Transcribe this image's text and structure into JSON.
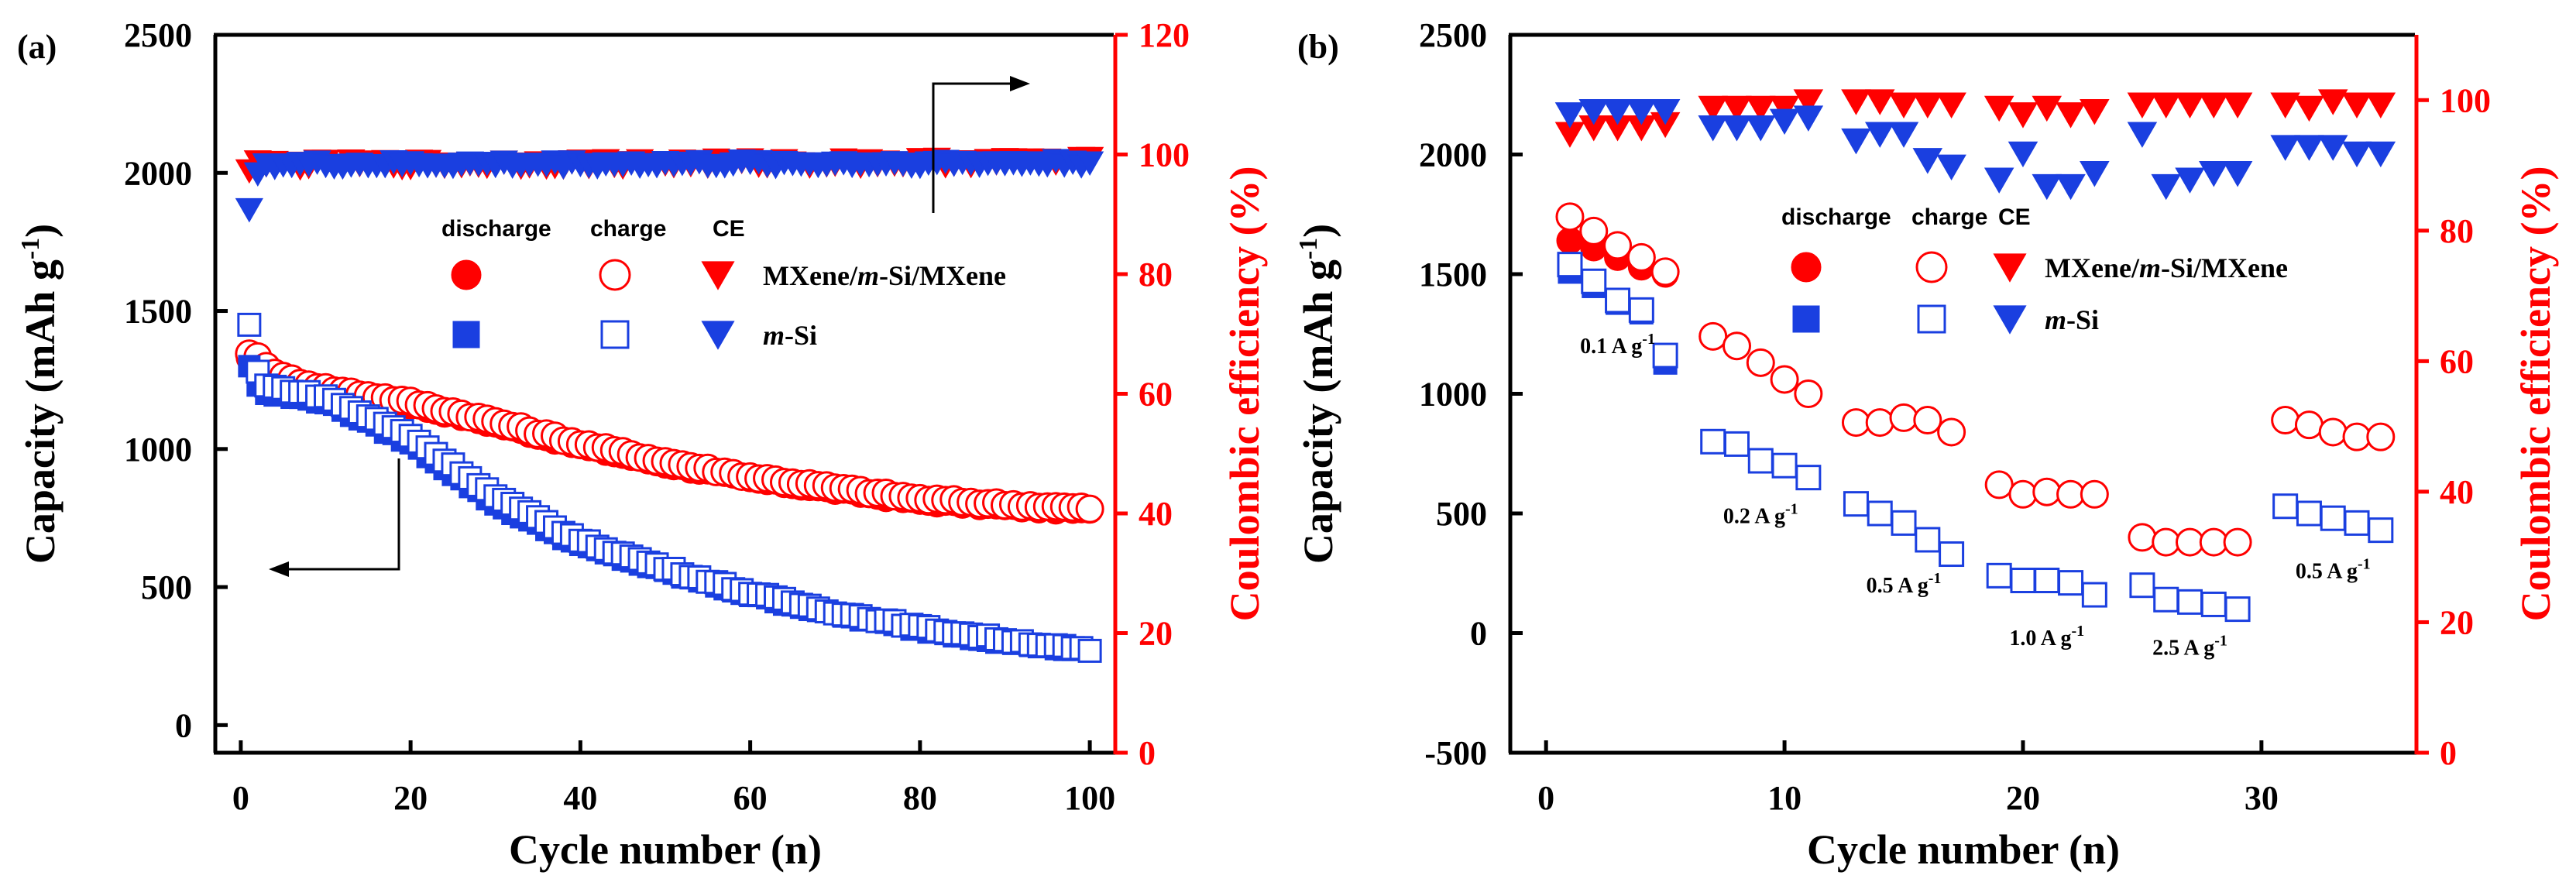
{
  "chart_data": [
    {
      "type": "scatter",
      "panel_label": "(a)",
      "xlabel": "Cycle number (n)",
      "ylabel_left": "Capacity (mAh g",
      "ylabel_left_sup": "-1",
      "ylabel_left_end": ")",
      "ylabel_right": "Coulombic efficiency (%)",
      "xlim": [
        -3,
        103
      ],
      "ylim_left": [
        -100,
        2500
      ],
      "ylim_right": [
        0,
        120
      ],
      "x_ticks": [
        "0",
        "20",
        "40",
        "60",
        "80",
        "100"
      ],
      "y_left_ticks": [
        "0",
        "500",
        "1000",
        "1500",
        "2000",
        "2500"
      ],
      "y_right_ticks": [
        "0",
        "20",
        "40",
        "60",
        "80",
        "100",
        "120"
      ],
      "legend": {
        "headers": [
          "discharge",
          "charge",
          "CE"
        ],
        "series_names": [
          "MXene/",
          "m",
          "-Si/MXene",
          "m",
          "-Si"
        ]
      },
      "series": [
        {
          "name": "MXene/m-Si/MXene discharge",
          "axis": "left",
          "color": "#ff0000",
          "marker": "circle",
          "filled": true,
          "control": [
            [
              1,
              1330
            ],
            [
              2,
              1320
            ],
            [
              3,
              1290
            ],
            [
              5,
              1250
            ],
            [
              10,
              1210
            ],
            [
              20,
              1160
            ],
            [
              30,
              1090
            ],
            [
              40,
              1010
            ],
            [
              50,
              945
            ],
            [
              60,
              890
            ],
            [
              70,
              850
            ],
            [
              80,
              810
            ],
            [
              90,
              790
            ],
            [
              100,
              775
            ]
          ]
        },
        {
          "name": "MXene/m-Si/MXene charge",
          "axis": "left",
          "color": "#ff0000",
          "marker": "circle",
          "filled": false,
          "control": [
            [
              1,
              1345
            ],
            [
              2,
              1335
            ],
            [
              3,
              1300
            ],
            [
              5,
              1260
            ],
            [
              10,
              1220
            ],
            [
              20,
              1170
            ],
            [
              30,
              1100
            ],
            [
              40,
              1020
            ],
            [
              50,
              955
            ],
            [
              60,
              900
            ],
            [
              70,
              860
            ],
            [
              80,
              820
            ],
            [
              90,
              800
            ],
            [
              100,
              785
            ]
          ]
        },
        {
          "name": "m-Si discharge",
          "axis": "left",
          "color": "#1a3fe0",
          "marker": "square",
          "filled": true,
          "control": [
            [
              1,
              1300
            ],
            [
              2,
              1230
            ],
            [
              3,
              1200
            ],
            [
              10,
              1170
            ],
            [
              20,
              1020
            ],
            [
              30,
              800
            ],
            [
              40,
              650
            ],
            [
              50,
              555
            ],
            [
              60,
              470
            ],
            [
              70,
              400
            ],
            [
              80,
              345
            ],
            [
              90,
              300
            ],
            [
              100,
              265
            ]
          ]
        },
        {
          "name": "m-Si charge",
          "axis": "left",
          "color": "#1a3fe0",
          "marker": "square",
          "filled": false,
          "control": [
            [
              1,
              1450
            ],
            [
              2,
              1280
            ],
            [
              3,
              1230
            ],
            [
              10,
              1190
            ],
            [
              20,
              1050
            ],
            [
              30,
              830
            ],
            [
              40,
              670
            ],
            [
              50,
              570
            ],
            [
              60,
              480
            ],
            [
              70,
              410
            ],
            [
              80,
              355
            ],
            [
              90,
              310
            ],
            [
              100,
              270
            ]
          ]
        },
        {
          "name": "MXene/m-Si/MXene CE",
          "axis": "right",
          "color": "#ff0000",
          "marker": "triangle-down",
          "filled": true,
          "control": [
            [
              1,
              97.5
            ],
            [
              2,
              99
            ],
            [
              3,
              98.5
            ],
            [
              100,
              99
            ]
          ],
          "jitter": 0.6
        },
        {
          "name": "m-Si CE",
          "axis": "right",
          "color": "#1a3fe0",
          "marker": "triangle-down",
          "filled": true,
          "control": [
            [
              1,
              91
            ],
            [
              2,
              97
            ],
            [
              3,
              98.5
            ],
            [
              100,
              98.8
            ]
          ],
          "jitter": 0.5
        }
      ],
      "annotations": [
        "arrow to right axis",
        "arrow to left axis"
      ]
    },
    {
      "type": "scatter",
      "panel_label": "(b)",
      "xlabel": "Cycle number (n)",
      "ylabel_left": "Capacity (mAh g",
      "ylabel_left_sup": "-1",
      "ylabel_left_end": ")",
      "ylabel_right": "Coulombic efficiency (%)",
      "xlim": [
        -1.5,
        36.5
      ],
      "ylim_left": [
        -500,
        2500
      ],
      "ylim_right": [
        0,
        110
      ],
      "x_ticks": [
        "0",
        "10",
        "20",
        "30"
      ],
      "y_left_ticks": [
        "-500",
        "0",
        "500",
        "1000",
        "1500",
        "2000",
        "2500"
      ],
      "y_right_ticks": [
        "0",
        "20",
        "40",
        "60",
        "80",
        "100"
      ],
      "legend": {
        "headers": [
          "discharge",
          "charge",
          "CE"
        ],
        "series_names": [
          "MXene/",
          "m",
          "-Si/MXene",
          "m",
          "-Si"
        ]
      },
      "rate_labels": [
        {
          "text": "0.1 A g",
          "sup": "-1",
          "cx": 3,
          "val": 1170
        },
        {
          "text": "0.2 A g",
          "sup": "-1",
          "cx": 9,
          "val": 460
        },
        {
          "text": "0.5 A g",
          "sup": "-1",
          "cx": 15,
          "val": 170
        },
        {
          "text": "1.0 A g",
          "sup": "-1",
          "cx": 21,
          "val": -50
        },
        {
          "text": "2.5 A g",
          "sup": "-1",
          "cx": 27,
          "val": -90
        },
        {
          "text": "0.5 A g",
          "sup": "-1",
          "cx": 33,
          "val": 230
        }
      ],
      "series": [
        {
          "name": "MXene/m-Si/MXene discharge",
          "axis": "left",
          "color": "#ff0000",
          "marker": "circle",
          "filled": true,
          "points": [
            [
              1,
              1640
            ],
            [
              2,
              1610
            ],
            [
              3,
              1570
            ],
            [
              4,
              1530
            ],
            [
              5,
              1500
            ]
          ]
        },
        {
          "name": "MXene/m-Si/MXene charge",
          "axis": "left",
          "color": "#ff0000",
          "marker": "circle",
          "filled": false,
          "points": [
            [
              1,
              1740
            ],
            [
              2,
              1680
            ],
            [
              3,
              1620
            ],
            [
              4,
              1570
            ],
            [
              5,
              1510
            ],
            [
              7,
              1240
            ],
            [
              8,
              1200
            ],
            [
              9,
              1130
            ],
            [
              10,
              1060
            ],
            [
              11,
              1000
            ],
            [
              13,
              880
            ],
            [
              14,
              880
            ],
            [
              15,
              900
            ],
            [
              16,
              890
            ],
            [
              17,
              840
            ],
            [
              19,
              620
            ],
            [
              20,
              580
            ],
            [
              21,
              590
            ],
            [
              22,
              580
            ],
            [
              23,
              580
            ],
            [
              25,
              400
            ],
            [
              26,
              380
            ],
            [
              27,
              380
            ],
            [
              28,
              380
            ],
            [
              29,
              380
            ],
            [
              31,
              890
            ],
            [
              32,
              870
            ],
            [
              33,
              840
            ],
            [
              34,
              820
            ],
            [
              35,
              820
            ]
          ]
        },
        {
          "name": "m-Si discharge",
          "axis": "left",
          "color": "#1a3fe0",
          "marker": "square",
          "filled": true,
          "points": [
            [
              1,
              1510
            ],
            [
              2,
              1450
            ],
            [
              3,
              1380
            ],
            [
              4,
              1340
            ],
            [
              5,
              1130
            ]
          ]
        },
        {
          "name": "m-Si charge",
          "axis": "left",
          "color": "#1a3fe0",
          "marker": "square",
          "filled": false,
          "points": [
            [
              1,
              1540
            ],
            [
              2,
              1470
            ],
            [
              3,
              1390
            ],
            [
              4,
              1350
            ],
            [
              5,
              1160
            ],
            [
              7,
              800
            ],
            [
              8,
              790
            ],
            [
              9,
              720
            ],
            [
              10,
              700
            ],
            [
              11,
              650
            ],
            [
              13,
              540
            ],
            [
              14,
              500
            ],
            [
              15,
              460
            ],
            [
              16,
              390
            ],
            [
              17,
              330
            ],
            [
              19,
              240
            ],
            [
              20,
              220
            ],
            [
              21,
              220
            ],
            [
              22,
              210
            ],
            [
              23,
              160
            ],
            [
              25,
              200
            ],
            [
              26,
              140
            ],
            [
              27,
              130
            ],
            [
              28,
              120
            ],
            [
              29,
              100
            ],
            [
              31,
              530
            ],
            [
              32,
              500
            ],
            [
              33,
              480
            ],
            [
              34,
              460
            ],
            [
              35,
              430
            ]
          ]
        },
        {
          "name": "MXene/m-Si/MXene CE",
          "axis": "right",
          "color": "#ff0000",
          "marker": "triangle-down",
          "filled": true,
          "points": [
            [
              1,
              95
            ],
            [
              2,
              96
            ],
            [
              3,
              96
            ],
            [
              4,
              96
            ],
            [
              5,
              96.5
            ],
            [
              7,
              99
            ],
            [
              8,
              99
            ],
            [
              9,
              99
            ],
            [
              10,
              99
            ],
            [
              11,
              100
            ],
            [
              13,
              100
            ],
            [
              14,
              100
            ],
            [
              15,
              99.5
            ],
            [
              16,
              99.5
            ],
            [
              17,
              99.5
            ],
            [
              19,
              99
            ],
            [
              20,
              98
            ],
            [
              21,
              99
            ],
            [
              22,
              98
            ],
            [
              23,
              98.5
            ],
            [
              25,
              99.5
            ],
            [
              26,
              99.5
            ],
            [
              27,
              99.5
            ],
            [
              28,
              99.5
            ],
            [
              29,
              99.5
            ],
            [
              31,
              99.5
            ],
            [
              32,
              99
            ],
            [
              33,
              100
            ],
            [
              34,
              99.5
            ],
            [
              35,
              99.5
            ]
          ]
        },
        {
          "name": "m-Si CE",
          "axis": "right",
          "color": "#1a3fe0",
          "marker": "triangle-down",
          "filled": true,
          "points": [
            [
              1,
              98
            ],
            [
              2,
              98.5
            ],
            [
              3,
              98.5
            ],
            [
              4,
              98.5
            ],
            [
              5,
              98.5
            ],
            [
              7,
              96
            ],
            [
              8,
              96
            ],
            [
              9,
              96
            ],
            [
              10,
              97
            ],
            [
              11,
              97.5
            ],
            [
              13,
              94
            ],
            [
              14,
              95
            ],
            [
              15,
              95
            ],
            [
              16,
              91
            ],
            [
              17,
              90
            ],
            [
              19,
              88
            ],
            [
              20,
              92
            ],
            [
              21,
              87
            ],
            [
              22,
              87
            ],
            [
              23,
              89
            ],
            [
              25,
              95
            ],
            [
              26,
              87
            ],
            [
              27,
              88
            ],
            [
              28,
              89
            ],
            [
              29,
              89
            ],
            [
              31,
              93
            ],
            [
              32,
              93
            ],
            [
              33,
              93
            ],
            [
              34,
              92
            ],
            [
              35,
              92
            ]
          ]
        }
      ]
    }
  ]
}
